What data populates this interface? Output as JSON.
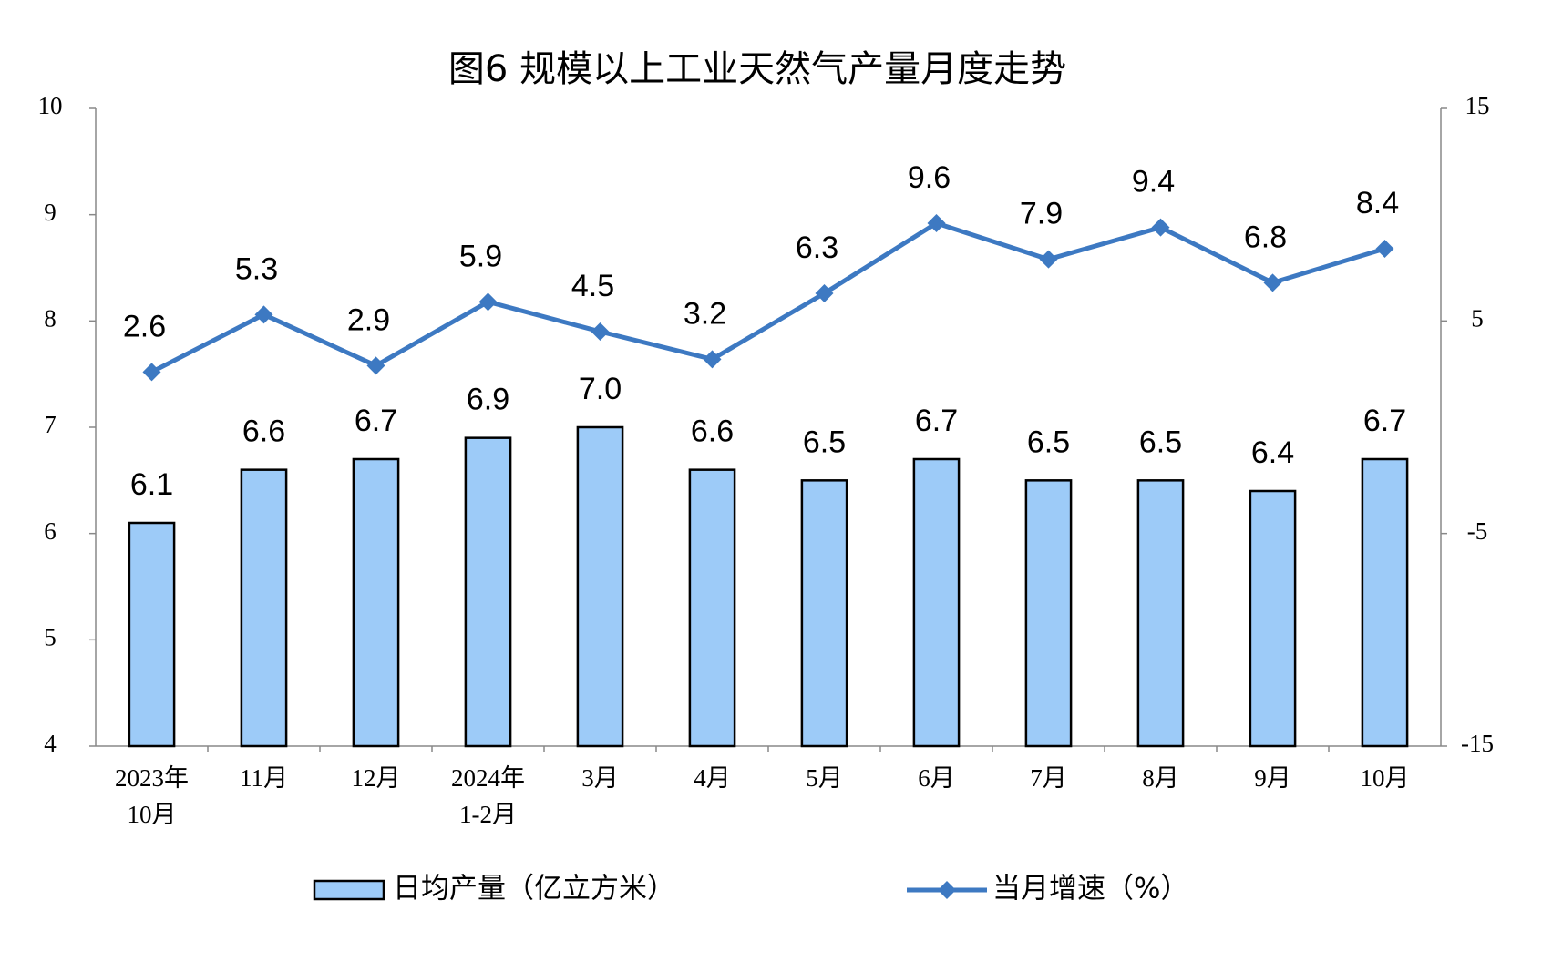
{
  "chart_data": {
    "type": "bar-line",
    "title": "图6  规模以上工业天然气产量月度走势",
    "categories": [
      [
        "2023年",
        "10月"
      ],
      [
        "11月"
      ],
      [
        "12月"
      ],
      [
        "2024年",
        "1-2月"
      ],
      [
        "3月"
      ],
      [
        "4月"
      ],
      [
        "5月"
      ],
      [
        "6月"
      ],
      [
        "7月"
      ],
      [
        "8月"
      ],
      [
        "9月"
      ],
      [
        "10月"
      ]
    ],
    "series": [
      {
        "name": "日均产量（亿立方米）",
        "type": "bar",
        "color": "#9dcbf8",
        "values": [
          6.1,
          6.6,
          6.7,
          6.9,
          7.0,
          6.6,
          6.5,
          6.7,
          6.5,
          6.5,
          6.4,
          6.7
        ],
        "value_labels": [
          "6.1",
          "6.6",
          "6.7",
          "6.9",
          "7.0",
          "6.6",
          "6.5",
          "6.7",
          "6.5",
          "6.5",
          "6.4",
          "6.7"
        ]
      },
      {
        "name": "当月增速（%）",
        "type": "line",
        "axis": "y2",
        "color": "#3d79c2",
        "values": [
          2.6,
          5.3,
          2.9,
          5.9,
          4.5,
          3.2,
          6.3,
          9.6,
          7.9,
          9.4,
          6.8,
          8.4
        ]
      }
    ],
    "ylim": [
      4,
      10
    ],
    "yticks": [
      4,
      5,
      6,
      7,
      8,
      9,
      10
    ],
    "y2lim": [
      -15,
      15
    ],
    "y2ticks": [
      -15,
      -5,
      5,
      15
    ]
  }
}
